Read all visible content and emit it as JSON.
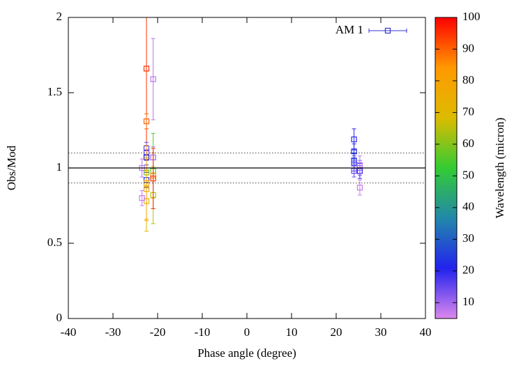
{
  "chart_data": {
    "type": "scatter",
    "x_label": "Phase angle (degree)",
    "y_label": "Obs/Mod",
    "xlim": [
      -40,
      40
    ],
    "ylim": [
      0,
      2
    ],
    "xticks": [
      -40,
      -30,
      -20,
      -10,
      0,
      10,
      20,
      30,
      40
    ],
    "yticks": [
      0,
      0.5,
      1,
      1.5,
      2
    ],
    "reference_lines": [
      {
        "y": 1,
        "style": "solid"
      },
      {
        "y": 0.9,
        "style": "dotted"
      },
      {
        "y": 1.1,
        "style": "dotted"
      }
    ],
    "legend": "top-right",
    "colorbar": {
      "label": "Wavelength (micron)",
      "lim": [
        5,
        100
      ],
      "ticks": [
        10,
        20,
        30,
        40,
        50,
        60,
        70,
        80,
        90,
        100
      ],
      "palette": [
        "#dd88ee",
        "#2222ee",
        "#2288aa",
        "#33cc33",
        "#ddbb00",
        "#ff9900",
        "#ff0000"
      ]
    },
    "series": [
      {
        "name": "AM 1",
        "color": "#3333cc",
        "x": [
          -22.5,
          -22.5,
          -21,
          -22.5,
          -22.5,
          -22.5,
          -21,
          -23.5,
          -22.5,
          -21,
          -21,
          -22.5,
          -22.5,
          -22.5,
          -23.5,
          -21,
          -22.5,
          -21,
          24,
          24,
          24,
          24,
          24,
          25.3,
          25.3,
          25.3,
          25.3
        ],
        "values": [
          1.66,
          1.31,
          1.59,
          1.13,
          1.1,
          1.07,
          1.07,
          1.0,
          0.97,
          0.98,
          0.95,
          0.92,
          0.86,
          0.78,
          0.8,
          0.82,
          0.9,
          0.93,
          1.19,
          1.11,
          1.05,
          1.03,
          0.98,
          1.0,
          0.98,
          1.02,
          0.87
        ],
        "errors": [
          0.6,
          0.05,
          0.27,
          0.04,
          0.05,
          0.05,
          0.07,
          0.06,
          0.1,
          0.25,
          0.15,
          0.05,
          0.2,
          0.2,
          0.05,
          0.19,
          0.25,
          0.2,
          0.07,
          0.05,
          0.05,
          0.05,
          0.04,
          0.05,
          0.05,
          0.06,
          0.05
        ],
        "wavelength": [
          95,
          90,
          8,
          15,
          12,
          20,
          10,
          8,
          60,
          55,
          85,
          25,
          75,
          70,
          7,
          65,
          80,
          95,
          20,
          22,
          25,
          18,
          15,
          12,
          20,
          8,
          7
        ]
      }
    ]
  }
}
